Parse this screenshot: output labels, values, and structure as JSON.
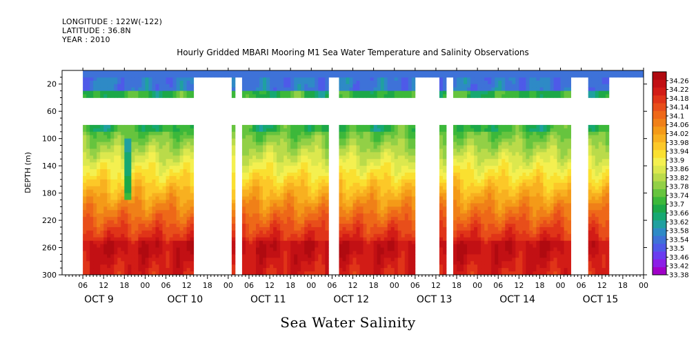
{
  "header": {
    "longitude": "LONGITUDE : 122W(-122)",
    "latitude": "LATITUDE : 36.8N",
    "year": "YEAR : 2010"
  },
  "footer": "Sea Water Salinity",
  "chart_data": {
    "type": "heatmap",
    "title": "Hourly Gridded MBARI Mooring M1 Sea Water Temperature and Salinity Observations",
    "ylabel": "DEPTH (m)",
    "xlabel": "",
    "x_unit": "hours",
    "x_range_hours": [
      0,
      168
    ],
    "ylim": [
      300,
      0
    ],
    "y_ticks": [
      20,
      60,
      100,
      140,
      180,
      220,
      260,
      300
    ],
    "x_hour_ticks": [
      {
        "hour": 6,
        "label": "06"
      },
      {
        "hour": 12,
        "label": "12"
      },
      {
        "hour": 18,
        "label": "18"
      },
      {
        "hour": 24,
        "label": "00"
      },
      {
        "hour": 30,
        "label": "06"
      },
      {
        "hour": 36,
        "label": "12"
      },
      {
        "hour": 42,
        "label": "18"
      },
      {
        "hour": 48,
        "label": "00"
      },
      {
        "hour": 54,
        "label": "06"
      },
      {
        "hour": 60,
        "label": "12"
      },
      {
        "hour": 66,
        "label": "18"
      },
      {
        "hour": 72,
        "label": "00"
      },
      {
        "hour": 78,
        "label": "06"
      },
      {
        "hour": 84,
        "label": "12"
      },
      {
        "hour": 90,
        "label": "18"
      },
      {
        "hour": 96,
        "label": "00"
      },
      {
        "hour": 102,
        "label": "06"
      },
      {
        "hour": 108,
        "label": "12"
      },
      {
        "hour": 114,
        "label": "18"
      },
      {
        "hour": 120,
        "label": "00"
      },
      {
        "hour": 126,
        "label": "06"
      },
      {
        "hour": 132,
        "label": "12"
      },
      {
        "hour": 138,
        "label": "18"
      },
      {
        "hour": 144,
        "label": "00"
      },
      {
        "hour": 150,
        "label": "06"
      },
      {
        "hour": 156,
        "label": "12"
      },
      {
        "hour": 162,
        "label": "18"
      },
      {
        "hour": 168,
        "label": "00"
      }
    ],
    "day_labels": [
      {
        "hour": 6,
        "label": "OCT  9"
      },
      {
        "hour": 30,
        "label": "OCT 10"
      },
      {
        "hour": 54,
        "label": "OCT 11"
      },
      {
        "hour": 78,
        "label": "OCT 12"
      },
      {
        "hour": 102,
        "label": "OCT 13"
      },
      {
        "hour": 126,
        "label": "OCT 14"
      },
      {
        "hour": 150,
        "label": "OCT 15"
      }
    ],
    "colorbar": {
      "min": 33.38,
      "max": 34.3,
      "labels": [
        "34.26",
        "34.22",
        "34.18",
        "34.14",
        "34.1",
        "34.06",
        "34.02",
        "33.98",
        "33.94",
        "33.9",
        "33.86",
        "33.82",
        "33.78",
        "33.74",
        "33.7",
        "33.66",
        "33.62",
        "33.58",
        "33.54",
        "33.5",
        "33.46",
        "33.42",
        "33.38"
      ],
      "colors": [
        "#a000c8",
        "#8c1ee6",
        "#6a3cf0",
        "#4e5ae8",
        "#3e72d8",
        "#2e8ac6",
        "#20a0a0",
        "#16a872",
        "#1ca848",
        "#3cb83a",
        "#66c43e",
        "#92d046",
        "#badb4a",
        "#dce84e",
        "#f4f050",
        "#fae030",
        "#fcc828",
        "#f8b020",
        "#f49a18",
        "#f08018",
        "#ee6818",
        "#e84e1a",
        "#e03418",
        "#d21c16",
        "#c21014",
        "#b00a10"
      ]
    },
    "depth_levels": [
      20,
      40,
      80,
      90,
      100,
      120,
      140,
      160,
      180,
      200,
      220,
      240,
      260,
      280,
      300
    ],
    "gaps_hours": [
      [
        0,
        6
      ],
      [
        38,
        49
      ],
      [
        50,
        52
      ],
      [
        77,
        80
      ],
      [
        102,
        109
      ],
      [
        111,
        113
      ],
      [
        147,
        152
      ],
      [
        158,
        168
      ]
    ],
    "shallow_20m_value": 33.55,
    "near_surface_value": 33.7,
    "anomaly": {
      "hour": 19,
      "depth_range": [
        100,
        190
      ],
      "min_value": 33.55
    }
  }
}
